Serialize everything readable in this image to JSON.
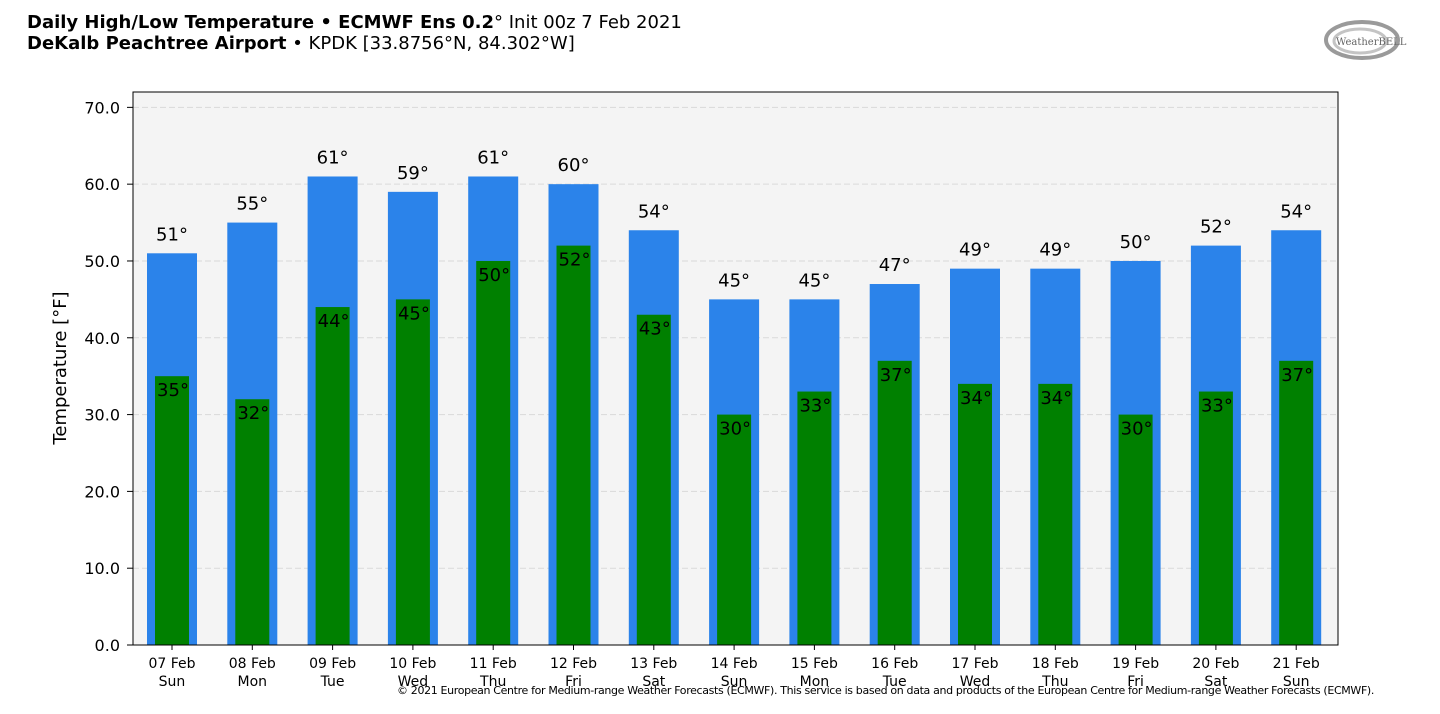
{
  "header": {
    "line1_bold": "Daily High/Low Temperature • ECMWF Ens 0.2",
    "line1_rest": "° Init 00z 7 Feb 2021",
    "line2_bold": "DeKalb Peachtree Airport",
    "line2_rest": " • KPDK [33.8756°N, 84.302°W]"
  },
  "logo": {
    "text": "WeatherBELL",
    "icon": "weatherbell-logo-icon"
  },
  "copyright": "© 2021 European Centre for Medium-range Weather Forecasts (ECMWF). This service is based on data and products of the European Centre for Medium-range Weather Forecasts (ECMWF).",
  "colors": {
    "high": "#2b83ea",
    "low": "#008000",
    "plot_bg": "#f4f4f4"
  },
  "chart_data": {
    "type": "bar",
    "ylabel": "Temperature [°F]",
    "ylim": [
      0,
      72
    ],
    "yticks": [
      "0.0",
      "10.0",
      "20.0",
      "30.0",
      "40.0",
      "50.0",
      "60.0",
      "70.0"
    ],
    "grid": true,
    "categories": [
      {
        "date": "07 Feb",
        "day": "Sun"
      },
      {
        "date": "08 Feb",
        "day": "Mon"
      },
      {
        "date": "09 Feb",
        "day": "Tue"
      },
      {
        "date": "10 Feb",
        "day": "Wed"
      },
      {
        "date": "11 Feb",
        "day": "Thu"
      },
      {
        "date": "12 Feb",
        "day": "Fri"
      },
      {
        "date": "13 Feb",
        "day": "Sat"
      },
      {
        "date": "14 Feb",
        "day": "Sun"
      },
      {
        "date": "15 Feb",
        "day": "Mon"
      },
      {
        "date": "16 Feb",
        "day": "Tue"
      },
      {
        "date": "17 Feb",
        "day": "Wed"
      },
      {
        "date": "18 Feb",
        "day": "Thu"
      },
      {
        "date": "19 Feb",
        "day": "Fri"
      },
      {
        "date": "20 Feb",
        "day": "Sat"
      },
      {
        "date": "21 Feb",
        "day": "Sun"
      }
    ],
    "series": [
      {
        "values": [
          51,
          55,
          61,
          59,
          61,
          60,
          54,
          45,
          45,
          47,
          49,
          49,
          50,
          52,
          54
        ],
        "labels": [
          "51°",
          "55°",
          "61°",
          "59°",
          "61°",
          "60°",
          "54°",
          "45°",
          "45°",
          "47°",
          "49°",
          "49°",
          "50°",
          "52°",
          "54°"
        ]
      },
      {
        "values": [
          35,
          32,
          44,
          45,
          50,
          52,
          43,
          30,
          33,
          37,
          34,
          34,
          30,
          33,
          37
        ],
        "labels": [
          "35°",
          "32°",
          "44°",
          "45°",
          "50°",
          "52°",
          "43°",
          "30°",
          "33°",
          "37°",
          "34°",
          "34°",
          "30°",
          "33°",
          "37°"
        ]
      }
    ]
  }
}
